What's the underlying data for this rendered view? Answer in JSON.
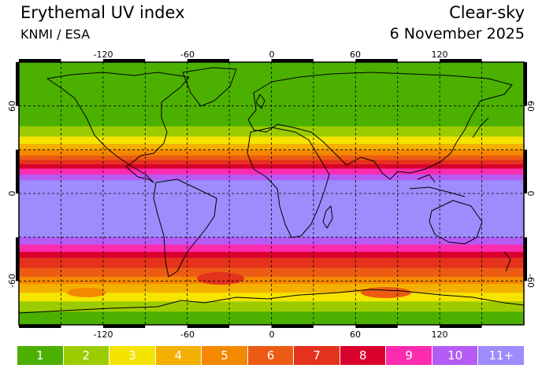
{
  "header": {
    "title": "Erythemal UV index",
    "subtitle": "KNMI / ESA",
    "mode": "Clear-sky",
    "date": "6 November 2025"
  },
  "map": {
    "lon_ticks": [
      "-120",
      "-60",
      "0",
      "60",
      "120"
    ],
    "lat_ticks_left": [
      "60",
      "0",
      "-60"
    ],
    "lat_ticks_right": [
      "60",
      "0",
      "-60"
    ],
    "lon_range": [
      -180,
      180
    ],
    "lat_range": [
      -90,
      90
    ],
    "grid": "dashed 30° graticule",
    "bands": [
      {
        "lat_top": 90,
        "lat_bottom": 46,
        "uv": 1
      },
      {
        "lat_top": 46,
        "lat_bottom": 39,
        "uv": 2
      },
      {
        "lat_top": 39,
        "lat_bottom": 34,
        "uv": 3
      },
      {
        "lat_top": 34,
        "lat_bottom": 30,
        "uv": 4
      },
      {
        "lat_top": 30,
        "lat_bottom": 26,
        "uv": 5
      },
      {
        "lat_top": 26,
        "lat_bottom": 23,
        "uv": 6
      },
      {
        "lat_top": 23,
        "lat_bottom": 20,
        "uv": 7
      },
      {
        "lat_top": 20,
        "lat_bottom": 17,
        "uv": 8
      },
      {
        "lat_top": 17,
        "lat_bottom": 13,
        "uv": 9
      },
      {
        "lat_top": 13,
        "lat_bottom": 9,
        "uv": 10
      },
      {
        "lat_top": 9,
        "lat_bottom": -30,
        "uv": 11
      },
      {
        "lat_top": -30,
        "lat_bottom": -35,
        "uv": 10
      },
      {
        "lat_top": -35,
        "lat_bottom": -40,
        "uv": 9
      },
      {
        "lat_top": -40,
        "lat_bottom": -44,
        "uv": 8
      },
      {
        "lat_top": -44,
        "lat_bottom": -51,
        "uv": 7
      },
      {
        "lat_top": -51,
        "lat_bottom": -57,
        "uv": 6
      },
      {
        "lat_top": -57,
        "lat_bottom": -62,
        "uv": 5
      },
      {
        "lat_top": -62,
        "lat_bottom": -68,
        "uv": 4
      },
      {
        "lat_top": -68,
        "lat_bottom": -74,
        "uv": 3
      },
      {
        "lat_top": -74,
        "lat_bottom": -81,
        "uv": 2
      },
      {
        "lat_top": -81,
        "lat_bottom": -90,
        "uv": 1
      }
    ]
  },
  "legend": [
    {
      "label": "1",
      "color": "#4cb000"
    },
    {
      "label": "2",
      "color": "#9ccc00"
    },
    {
      "label": "3",
      "color": "#f4e400"
    },
    {
      "label": "4",
      "color": "#f4b000"
    },
    {
      "label": "5",
      "color": "#f48800"
    },
    {
      "label": "6",
      "color": "#ec5a14"
    },
    {
      "label": "7",
      "color": "#e4321c"
    },
    {
      "label": "8",
      "color": "#d8002c"
    },
    {
      "label": "9",
      "color": "#fc2cb0"
    },
    {
      "label": "10",
      "color": "#b45cf4"
    },
    {
      "label": "11+",
      "color": "#9c8cfc"
    }
  ]
}
